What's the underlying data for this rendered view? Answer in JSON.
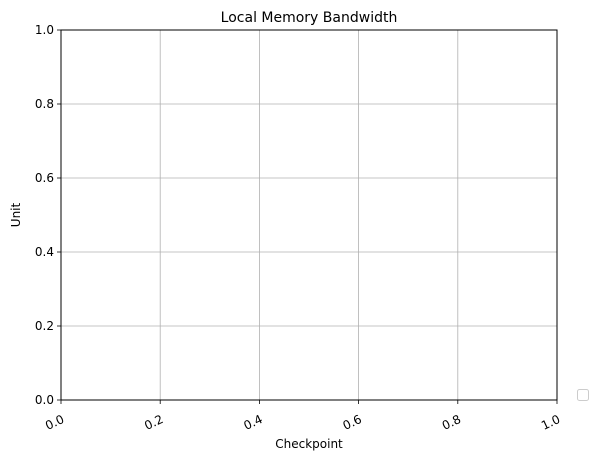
{
  "chart_data": {
    "type": "line",
    "title": "Local Memory Bandwidth",
    "xlabel": "Checkpoint",
    "ylabel": "Unit",
    "xlim": [
      0.0,
      1.0
    ],
    "ylim": [
      0.0,
      1.0
    ],
    "xticks": [
      "0.0",
      "0.2",
      "0.4",
      "0.6",
      "0.8",
      "1.0"
    ],
    "yticks": [
      "0.0",
      "0.2",
      "0.4",
      "0.6",
      "0.8",
      "1.0"
    ],
    "x_tick_rotation_deg": 25,
    "grid": true,
    "legend": {
      "position": "outside-lower-right",
      "entries": []
    },
    "series": []
  }
}
